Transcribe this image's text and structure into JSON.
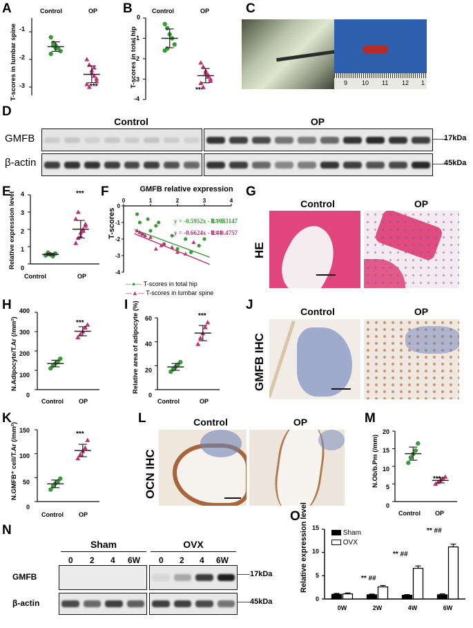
{
  "panels": {
    "A": {
      "label": "A",
      "ylabel": "T-scores in lumbar spine",
      "groups": [
        "Control",
        "OP"
      ],
      "yticks": [
        "-1",
        "-2",
        "-3"
      ],
      "stars": "***"
    },
    "B": {
      "label": "B",
      "ylabel": "T-scores in total hip",
      "groups": [
        "Control",
        "OP"
      ],
      "yticks": [
        "0",
        "-1",
        "-2",
        "-3",
        "-4"
      ],
      "stars": "***"
    },
    "C": {
      "label": "C",
      "ruler": [
        "9",
        "10",
        "11",
        "12",
        "1"
      ]
    },
    "D": {
      "label": "D",
      "control": "Control",
      "op": "OP",
      "row1": "GMFB",
      "row2": "β-actin",
      "kda1": "17kDa",
      "kda2": "45kDa"
    },
    "E": {
      "label": "E",
      "ylabel": "Relative expression level",
      "yticks": [
        "0",
        "1",
        "2",
        "3",
        "4"
      ],
      "groups": [
        "Control",
        "OP"
      ],
      "stars": "***"
    },
    "F": {
      "label": "F",
      "xtitle": "GMFB relative expression",
      "xticks": [
        "0",
        "1",
        "2",
        "3",
        "4"
      ],
      "yticks": [
        "0",
        "-1",
        "-2",
        "-3",
        "-4"
      ],
      "ylabel": "T-scores",
      "eq1": "y = -0.5952x - 1.193",
      "r1": "R²=0.3147",
      "eq2": "y = -0.6624x - 1.41",
      "r2": "R²=0.4757",
      "legend1": "T-scores in total hip",
      "legend2": "T-scores in lumbar spine"
    },
    "G": {
      "label": "G",
      "control": "Control",
      "op": "OP",
      "side": "HE"
    },
    "H": {
      "label": "H",
      "ylabel": "N.Adipocyte/T.Ar (/mm²)",
      "yticks": [
        "0",
        "100",
        "200",
        "300",
        "400"
      ],
      "groups": [
        "Control",
        "OP"
      ],
      "stars": "***"
    },
    "I": {
      "label": "I",
      "ylabel": "Relative area of adipocyte (%)",
      "yticks": [
        "0",
        "20",
        "40",
        "60"
      ],
      "groups": [
        "Control",
        "OP"
      ],
      "stars": "***"
    },
    "J": {
      "label": "J",
      "control": "Control",
      "op": "OP",
      "side": "GMFB IHC"
    },
    "K": {
      "label": "K",
      "ylabel": "N.GMFB⁺ cell/T.Ar (/mm²)",
      "yticks": [
        "0",
        "50",
        "100",
        "150"
      ],
      "groups": [
        "Control",
        "OP"
      ],
      "stars": "***"
    },
    "L": {
      "label": "L",
      "control": "Control",
      "op": "OP",
      "side": "OCN IHC"
    },
    "M": {
      "label": "M",
      "ylabel": "N.Ob/b.Pm (/mm)",
      "yticks": [
        "0",
        "5",
        "10",
        "15",
        "20"
      ],
      "groups": [
        "Control",
        "OP"
      ],
      "stars": "***"
    },
    "N": {
      "label": "N",
      "sham": "Sham",
      "ovx": "OVX",
      "lanes": [
        "0",
        "2",
        "4",
        "6W"
      ],
      "row1": "GMFB",
      "row2": "β-actin",
      "kda1": "17kDa",
      "kda2": "45kDa"
    },
    "O": {
      "label": "O",
      "ylabel": "Relative expression level",
      "yticks": [
        "0",
        "5",
        "10",
        "15"
      ],
      "legend": [
        "Sham",
        "OVX"
      ],
      "annot": [
        "** ##",
        "** ##",
        "** ##"
      ]
    }
  },
  "chart_data": [
    {
      "panel": "A",
      "type": "scatter",
      "ylabel": "T-scores in lumbar spine",
      "categories": [
        "Control",
        "OP"
      ],
      "series": [
        {
          "name": "Control",
          "values": [
            -1.2,
            -1.4,
            -1.5,
            -1.6,
            -1.7,
            -1.8,
            -1.5,
            -1.6
          ]
        },
        {
          "name": "OP",
          "values": [
            -2.0,
            -2.2,
            -2.4,
            -2.6,
            -2.7,
            -2.9,
            -3.0,
            -2.5,
            -2.3,
            -2.8
          ]
        }
      ],
      "ylim": [
        -3.3,
        -0.5
      ]
    },
    {
      "panel": "B",
      "type": "scatter",
      "ylabel": "T-scores in total hip",
      "categories": [
        "Control",
        "OP"
      ],
      "series": [
        {
          "name": "Control",
          "values": [
            -0.3,
            -0.5,
            -0.8,
            -1.0,
            -1.3,
            -1.6,
            -1.5
          ]
        },
        {
          "name": "OP",
          "values": [
            -2.2,
            -2.4,
            -2.6,
            -2.8,
            -3.0,
            -3.2,
            -3.4,
            -2.7,
            -2.9,
            -3.1
          ]
        }
      ],
      "ylim": [
        -4,
        0
      ]
    },
    {
      "panel": "E",
      "type": "scatter",
      "ylabel": "Relative expression level",
      "categories": [
        "Control",
        "OP"
      ],
      "series": [
        {
          "name": "Control",
          "values": [
            0.5,
            0.6,
            0.55,
            0.45,
            0.6,
            0.5,
            0.65,
            0.55
          ]
        },
        {
          "name": "OP",
          "values": [
            1.2,
            1.5,
            1.8,
            2.0,
            2.3,
            2.6,
            3.0,
            1.6,
            1.9,
            2.2
          ]
        }
      ],
      "ylim": [
        0,
        4
      ]
    },
    {
      "panel": "F",
      "type": "scatter",
      "xlabel": "GMFB relative expression",
      "ylabel": "T-scores",
      "xlim": [
        0,
        4
      ],
      "ylim": [
        -4,
        0
      ],
      "series": [
        {
          "name": "T-scores in total hip",
          "x": [
            0.5,
            0.6,
            0.9,
            1.0,
            1.2,
            1.5,
            1.8,
            2.0,
            2.3,
            2.5,
            2.8,
            3.0,
            0.7,
            1.3
          ],
          "y": [
            -0.5,
            -1.0,
            -0.8,
            -1.5,
            -1.2,
            -2.3,
            -1.8,
            -2.6,
            -2.0,
            -2.8,
            -2.4,
            -2.0,
            -1.7,
            -1.0
          ]
        },
        {
          "name": "T-scores in lumbar spine",
          "x": [
            0.5,
            0.6,
            0.8,
            1.0,
            1.2,
            1.5,
            1.8,
            2.0,
            2.3,
            2.6,
            0.7,
            1.4
          ],
          "y": [
            -1.5,
            -1.6,
            -1.8,
            -1.9,
            -2.6,
            -2.3,
            -2.5,
            -2.8,
            -2.9,
            -2.2,
            -1.7,
            -2.4
          ]
        }
      ],
      "fits": [
        {
          "name": "T-scores in total hip",
          "slope": -0.5952,
          "intercept": -1.193
        },
        {
          "name": "T-scores in lumbar spine",
          "slope": -0.6624,
          "intercept": -1.41
        }
      ]
    },
    {
      "panel": "H",
      "type": "scatter",
      "ylabel": "N.Adipocyte/T.Ar (/mm²)",
      "categories": [
        "Control",
        "OP"
      ],
      "series": [
        {
          "name": "Control",
          "values": [
            110,
            125,
            135,
            145,
            160
          ]
        },
        {
          "name": "OP",
          "values": [
            270,
            285,
            300,
            320,
            335
          ]
        }
      ],
      "ylim": [
        0,
        400
      ]
    },
    {
      "panel": "I",
      "type": "scatter",
      "ylabel": "Relative area of adipocyte (%)",
      "categories": [
        "Control",
        "OP"
      ],
      "series": [
        {
          "name": "Control",
          "values": [
            15,
            17,
            19,
            21,
            23
          ]
        },
        {
          "name": "OP",
          "values": [
            38,
            43,
            47,
            52,
            56
          ]
        }
      ],
      "ylim": [
        0,
        60
      ]
    },
    {
      "panel": "K",
      "type": "scatter",
      "ylabel": "N.GMFB⁺ cell/T.Ar (/mm²)",
      "categories": [
        "Control",
        "OP"
      ],
      "series": [
        {
          "name": "Control",
          "values": [
            25,
            32,
            38,
            42,
            48
          ]
        },
        {
          "name": "OP",
          "values": [
            90,
            98,
            105,
            112,
            128
          ]
        }
      ],
      "ylim": [
        0,
        150
      ]
    },
    {
      "panel": "M",
      "type": "scatter",
      "ylabel": "N.Ob/b.Pm (/mm)",
      "categories": [
        "Control",
        "OP"
      ],
      "series": [
        {
          "name": "Control",
          "values": [
            11,
            12.5,
            13.5,
            14.5,
            16.5
          ]
        },
        {
          "name": "OP",
          "values": [
            5,
            5.5,
            6,
            6.5,
            7
          ]
        }
      ],
      "ylim": [
        0,
        20
      ]
    },
    {
      "panel": "O",
      "type": "bar",
      "ylabel": "Relative expression level",
      "categories": [
        "0W",
        "2W",
        "4W",
        "6W"
      ],
      "series": [
        {
          "name": "Sham",
          "values": [
            1.0,
            0.9,
            0.8,
            0.9
          ],
          "errors": [
            0.2,
            0.15,
            0.15,
            0.2
          ]
        },
        {
          "name": "OVX",
          "values": [
            1.1,
            2.6,
            6.6,
            11.2
          ],
          "errors": [
            0.2,
            0.3,
            0.5,
            0.6
          ]
        }
      ],
      "ylim": [
        0,
        15
      ]
    }
  ],
  "colors": {
    "green": "#3a9a3a",
    "magenta": "#c0306e",
    "mean": "#222222"
  }
}
